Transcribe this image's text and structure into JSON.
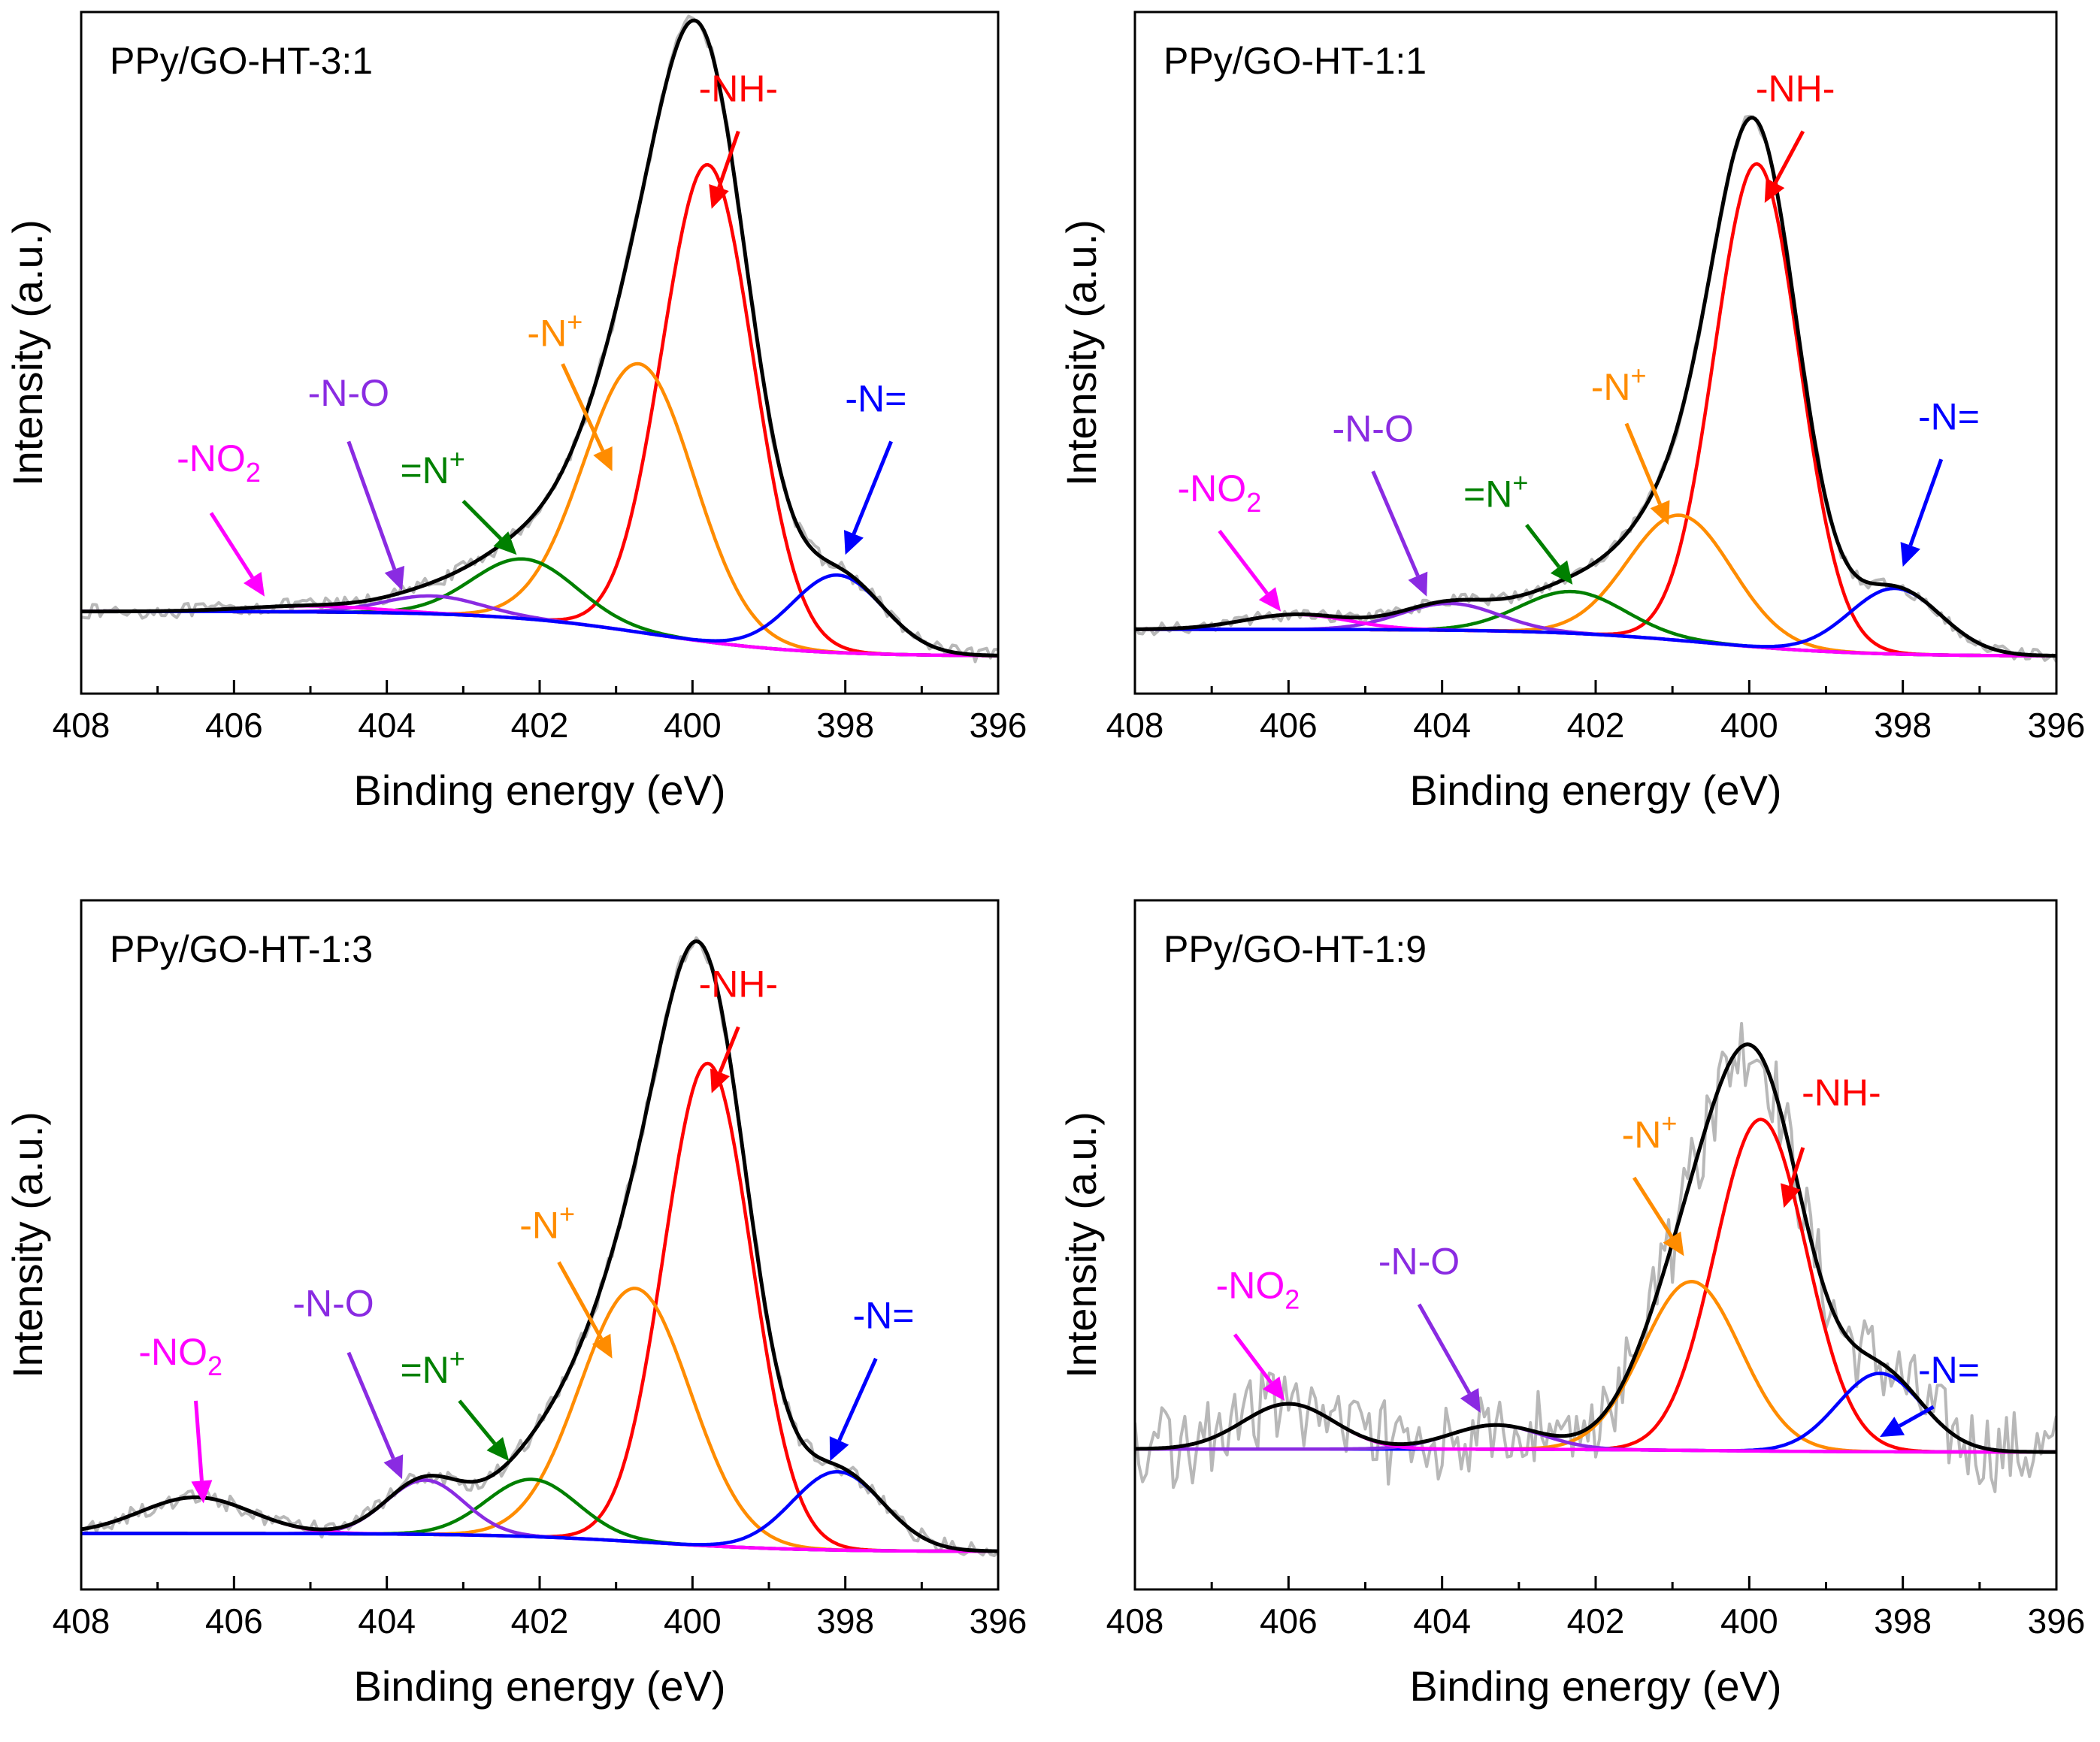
{
  "figure": {
    "axis_label_x": "Binding energy (eV)",
    "axis_label_y": "Intensity (a.u.)"
  },
  "colors": {
    "envelope": "#000000",
    "raw": "#b8b8b8",
    "baseline": "#000000",
    "NH": "#ff0000",
    "Nplus": "#ff8c00",
    "eqNplus": "#008000",
    "NO": "#8a2be2",
    "NO2": "#ff00ff",
    "Neq": "#0000ff"
  },
  "chart_data": [
    {
      "type": "line",
      "title": "PPy/GO-HT-3:1",
      "xlabel": "Binding energy (eV)",
      "ylabel": "Intensity (a.u.)",
      "xlim": [
        408,
        396
      ],
      "ylim": [
        0,
        1
      ],
      "xticks": [
        408,
        406,
        404,
        402,
        400,
        398,
        396
      ],
      "grid": false,
      "baseline": {
        "start": 0.075,
        "end": 0.0
      },
      "noise_amp": 0.012,
      "peaks": [
        {
          "name": "-NH-",
          "color_key": "NH",
          "center": 399.8,
          "height": 0.8,
          "fwhm": 1.4
        },
        {
          "name": "-N+",
          "color_key": "Nplus",
          "center": 400.7,
          "height": 0.45,
          "fwhm": 1.7
        },
        {
          "name": "=N+",
          "color_key": "eqNplus",
          "center": 402.2,
          "height": 0.1,
          "fwhm": 1.6
        },
        {
          "name": "-N-O",
          "color_key": "NO",
          "center": 403.4,
          "height": 0.03,
          "fwhm": 1.5
        },
        {
          "name": "-NO2",
          "color_key": "NO2",
          "center": 405.0,
          "height": 0.01,
          "fwhm": 2.0
        },
        {
          "name": "-N=",
          "color_key": "Neq",
          "center": 398.1,
          "height": 0.13,
          "fwhm": 1.4
        }
      ],
      "labels": [
        {
          "text": "-NH-",
          "color_key": "NH",
          "x": 399.4,
          "y": 0.93,
          "arrow_from": [
            399.4,
            0.88
          ],
          "arrow_to": [
            399.75,
            0.75
          ]
        },
        {
          "text": "-N",
          "sup": "+",
          "color_key": "Nplus",
          "x": 401.8,
          "y": 0.52,
          "arrow_from": [
            401.7,
            0.49
          ],
          "arrow_to": [
            401.05,
            0.31
          ]
        },
        {
          "text": "=N",
          "sup": "+",
          "color_key": "eqNplus",
          "x": 403.4,
          "y": 0.29,
          "arrow_from": [
            403.0,
            0.26
          ],
          "arrow_to": [
            402.3,
            0.17
          ]
        },
        {
          "text": "-N-O",
          "color_key": "NO",
          "x": 404.5,
          "y": 0.42,
          "arrow_from": [
            404.5,
            0.36
          ],
          "arrow_to": [
            403.8,
            0.11
          ]
        },
        {
          "text": "-NO",
          "sub": "2",
          "color_key": "NO2",
          "x": 406.2,
          "y": 0.31,
          "arrow_from": [
            406.3,
            0.24
          ],
          "arrow_to": [
            405.6,
            0.1
          ]
        },
        {
          "text": "-N=",
          "color_key": "Neq",
          "x": 397.6,
          "y": 0.41,
          "arrow_from": [
            397.4,
            0.36
          ],
          "arrow_to": [
            398.0,
            0.17
          ]
        }
      ]
    },
    {
      "type": "line",
      "title": "PPy/GO-HT-1:1",
      "xlabel": "Binding energy (eV)",
      "ylabel": "Intensity (a.u.)",
      "xlim": [
        408,
        396
      ],
      "ylim": [
        0,
        1
      ],
      "xticks": [
        408,
        406,
        404,
        402,
        400,
        398,
        396
      ],
      "grid": false,
      "baseline": {
        "start": 0.045,
        "end": 0.0
      },
      "noise_amp": 0.01,
      "peaks": [
        {
          "name": "-NH-",
          "color_key": "NH",
          "center": 399.9,
          "height": 0.81,
          "fwhm": 1.3
        },
        {
          "name": "-N+",
          "color_key": "Nplus",
          "center": 400.9,
          "height": 0.21,
          "fwhm": 1.6
        },
        {
          "name": "=N+",
          "color_key": "eqNplus",
          "center": 402.3,
          "height": 0.07,
          "fwhm": 1.6
        },
        {
          "name": "-N-O",
          "color_key": "NO",
          "center": 403.9,
          "height": 0.045,
          "fwhm": 1.5
        },
        {
          "name": "-NO2",
          "color_key": "NO2",
          "center": 405.9,
          "height": 0.025,
          "fwhm": 1.6
        },
        {
          "name": "-N=",
          "color_key": "Neq",
          "center": 398.1,
          "height": 0.11,
          "fwhm": 1.4
        }
      ],
      "labels": [
        {
          "text": "-NH-",
          "color_key": "NH",
          "x": 399.4,
          "y": 0.93,
          "arrow_from": [
            399.3,
            0.88
          ],
          "arrow_to": [
            399.8,
            0.76
          ]
        },
        {
          "text": "-N",
          "sup": "+",
          "color_key": "Nplus",
          "x": 401.7,
          "y": 0.43,
          "arrow_from": [
            401.6,
            0.39
          ],
          "arrow_to": [
            401.05,
            0.22
          ]
        },
        {
          "text": "=N",
          "sup": "+",
          "color_key": "eqNplus",
          "x": 403.3,
          "y": 0.25,
          "arrow_from": [
            402.9,
            0.22
          ],
          "arrow_to": [
            402.3,
            0.12
          ]
        },
        {
          "text": "-N-O",
          "color_key": "NO",
          "x": 404.9,
          "y": 0.36,
          "arrow_from": [
            404.9,
            0.31
          ],
          "arrow_to": [
            404.2,
            0.1
          ]
        },
        {
          "text": "-NO",
          "sub": "2",
          "color_key": "NO2",
          "x": 406.9,
          "y": 0.26,
          "arrow_from": [
            406.9,
            0.21
          ],
          "arrow_to": [
            406.1,
            0.075
          ]
        },
        {
          "text": "-N=",
          "color_key": "Neq",
          "x": 397.4,
          "y": 0.38,
          "arrow_from": [
            397.5,
            0.33
          ],
          "arrow_to": [
            398.0,
            0.15
          ]
        }
      ]
    },
    {
      "type": "line",
      "title": "PPy/GO-HT-1:3",
      "xlabel": "Binding energy (eV)",
      "ylabel": "Intensity (a.u.)",
      "xlim": [
        408,
        396
      ],
      "ylim": [
        0,
        1
      ],
      "xticks": [
        408,
        406,
        404,
        402,
        400,
        398,
        396
      ],
      "grid": false,
      "baseline": {
        "start": 0.03,
        "end": 0.0
      },
      "noise_amp": 0.014,
      "peaks": [
        {
          "name": "-NH-",
          "color_key": "NH",
          "center": 399.8,
          "height": 0.8,
          "fwhm": 1.35
        },
        {
          "name": "-N+",
          "color_key": "Nplus",
          "center": 400.75,
          "height": 0.42,
          "fwhm": 1.7
        },
        {
          "name": "=N+",
          "color_key": "eqNplus",
          "center": 402.1,
          "height": 0.095,
          "fwhm": 1.4
        },
        {
          "name": "-N-O",
          "color_key": "NO",
          "center": 403.5,
          "height": 0.09,
          "fwhm": 1.2
        },
        {
          "name": "-NO2",
          "color_key": "NO2",
          "center": 406.5,
          "height": 0.06,
          "fwhm": 1.7
        },
        {
          "name": "-N=",
          "color_key": "Neq",
          "center": 398.1,
          "height": 0.13,
          "fwhm": 1.4
        }
      ],
      "labels": [
        {
          "text": "-NH-",
          "color_key": "NH",
          "x": 399.4,
          "y": 0.92,
          "arrow_from": [
            399.4,
            0.87
          ],
          "arrow_to": [
            399.75,
            0.76
          ]
        },
        {
          "text": "-N",
          "sup": "+",
          "color_key": "Nplus",
          "x": 401.9,
          "y": 0.52,
          "arrow_from": [
            401.75,
            0.48
          ],
          "arrow_to": [
            401.05,
            0.32
          ]
        },
        {
          "text": "=N",
          "sup": "+",
          "color_key": "eqNplus",
          "x": 403.4,
          "y": 0.28,
          "arrow_from": [
            403.05,
            0.25
          ],
          "arrow_to": [
            402.4,
            0.15
          ]
        },
        {
          "text": "-N-O",
          "color_key": "NO",
          "x": 404.7,
          "y": 0.39,
          "arrow_from": [
            404.5,
            0.33
          ],
          "arrow_to": [
            403.8,
            0.12
          ]
        },
        {
          "text": "-NO",
          "sub": "2",
          "color_key": "NO2",
          "x": 406.7,
          "y": 0.31,
          "arrow_from": [
            406.5,
            0.25
          ],
          "arrow_to": [
            406.4,
            0.08
          ]
        },
        {
          "text": "-N=",
          "color_key": "Neq",
          "x": 397.5,
          "y": 0.37,
          "arrow_from": [
            397.6,
            0.32
          ],
          "arrow_to": [
            398.2,
            0.15
          ]
        }
      ]
    },
    {
      "type": "line",
      "title": "PPy/GO-HT-1:9",
      "xlabel": "Binding energy (eV)",
      "ylabel": "Intensity (a.u.)",
      "xlim": [
        408,
        396
      ],
      "ylim": [
        0,
        1
      ],
      "xticks": [
        408,
        406,
        404,
        402,
        400,
        398,
        396
      ],
      "grid": false,
      "baseline": {
        "start": 0.17,
        "end": 0.165
      },
      "noise_amp": 0.07,
      "peaks": [
        {
          "name": "-NH-",
          "color_key": "NH",
          "center": 399.85,
          "height": 0.55,
          "fwhm": 1.4
        },
        {
          "name": "-N+",
          "color_key": "Nplus",
          "center": 400.75,
          "height": 0.28,
          "fwhm": 1.5
        },
        {
          "name": "-N=",
          "color_key": "Neq",
          "center": 398.3,
          "height": 0.13,
          "fwhm": 1.3
        },
        {
          "name": "-N-O",
          "color_key": "NO",
          "center": 403.3,
          "height": 0.04,
          "fwhm": 1.4
        },
        {
          "name": "-NO2",
          "color_key": "NO2",
          "center": 406.0,
          "height": 0.075,
          "fwhm": 1.4
        }
      ],
      "labels": [
        {
          "text": "-NH-",
          "color_key": "NH",
          "x": 398.8,
          "y": 0.74,
          "arrow_from": [
            399.3,
            0.67
          ],
          "arrow_to": [
            399.55,
            0.57
          ]
        },
        {
          "text": "-N",
          "sup": "+",
          "color_key": "Nplus",
          "x": 401.3,
          "y": 0.67,
          "arrow_from": [
            401.5,
            0.62
          ],
          "arrow_to": [
            400.85,
            0.49
          ]
        },
        {
          "text": "-N-O",
          "color_key": "NO",
          "x": 404.3,
          "y": 0.46,
          "arrow_from": [
            404.3,
            0.41
          ],
          "arrow_to": [
            403.5,
            0.23
          ]
        },
        {
          "text": "-NO",
          "sub": "2",
          "color_key": "NO2",
          "x": 406.4,
          "y": 0.42,
          "arrow_from": [
            406.7,
            0.36
          ],
          "arrow_to": [
            406.05,
            0.25
          ]
        },
        {
          "text": "-N=",
          "color_key": "Neq",
          "x": 397.4,
          "y": 0.28,
          "arrow_from": [
            397.6,
            0.24
          ],
          "arrow_to": [
            398.3,
            0.19
          ]
        }
      ]
    }
  ]
}
